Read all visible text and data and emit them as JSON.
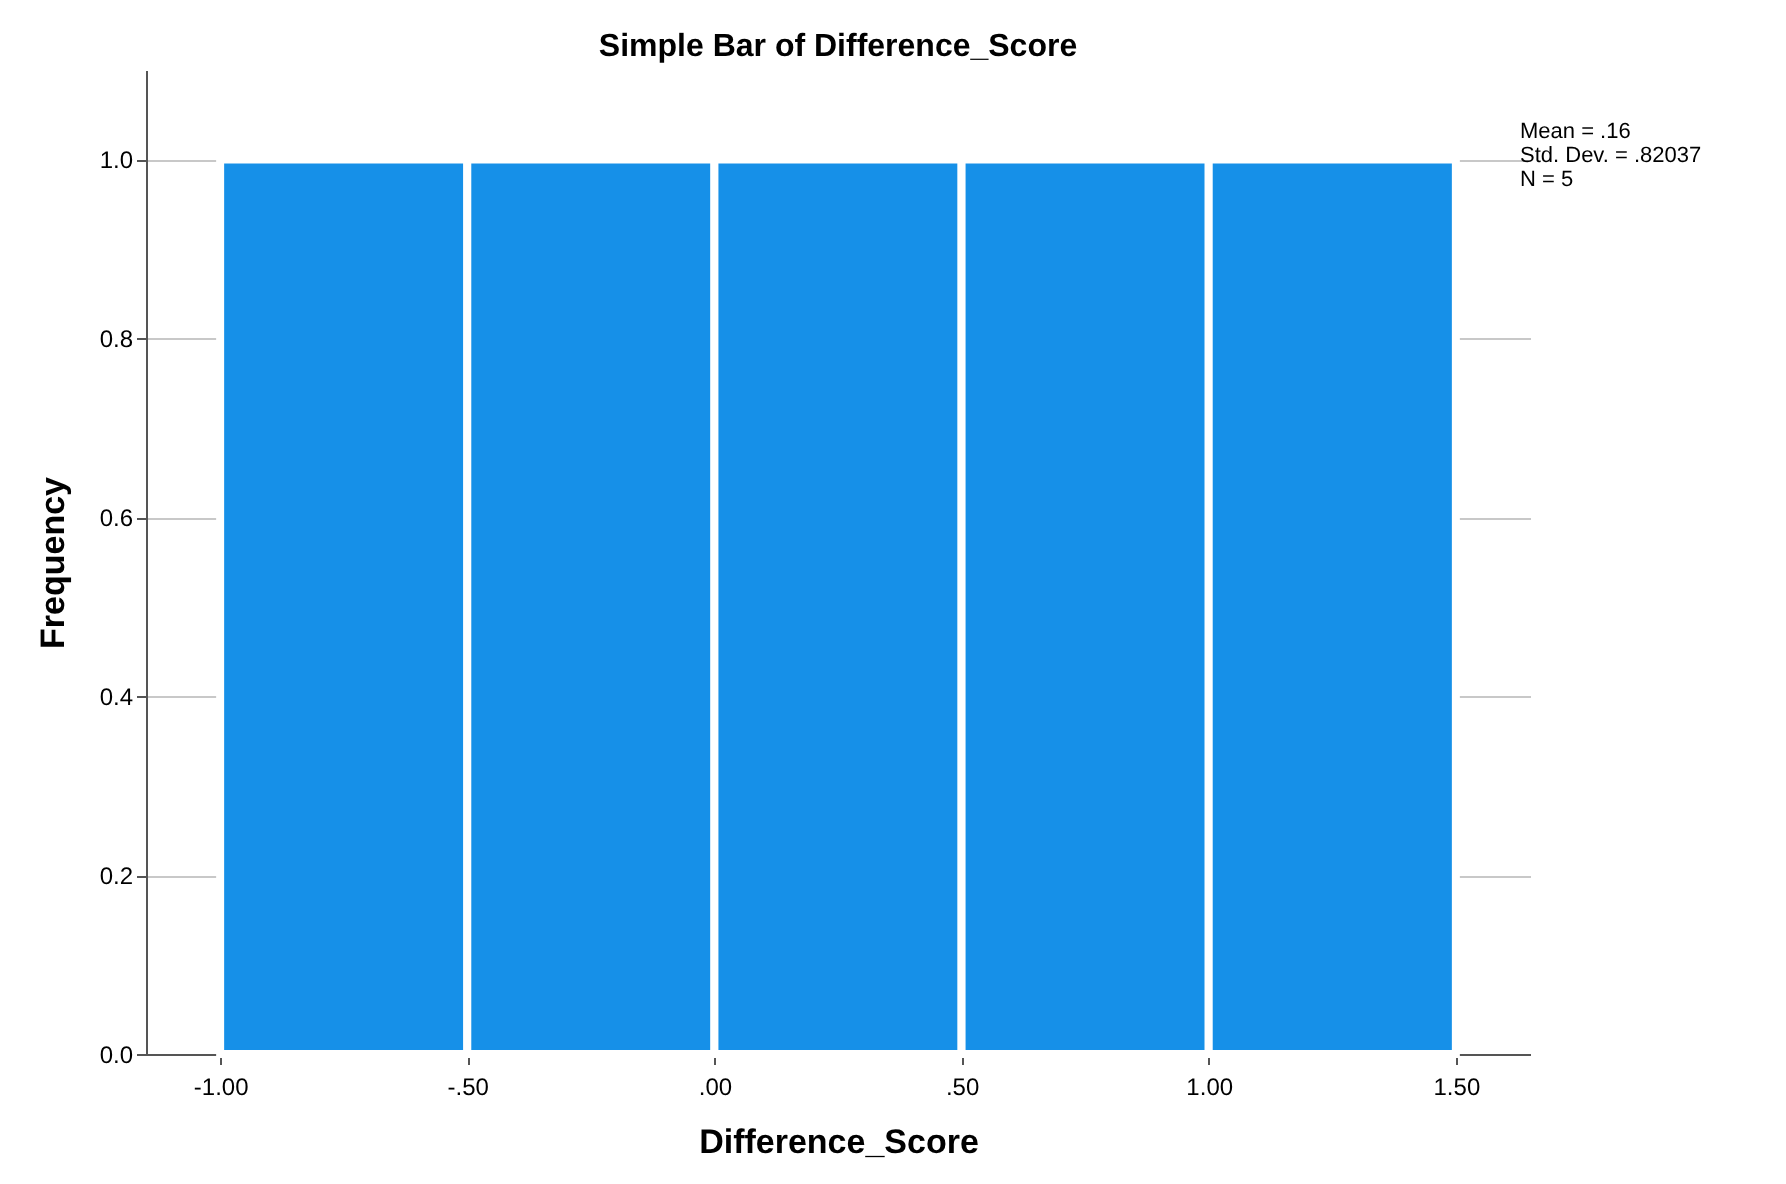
{
  "chart_data": {
    "type": "histogram",
    "title": "Simple Bar of Difference_Score",
    "xlabel": "Difference_Score",
    "ylabel": "Frequency",
    "bins": [
      -1,
      -0.5,
      0,
      0.5,
      1,
      1.5
    ],
    "values": [
      1,
      1,
      1,
      1,
      1
    ],
    "color": "#1690e8",
    "xlim": [
      -1.15,
      1.65
    ],
    "xticks": [
      {
        "value": -1,
        "label": "-1.00"
      },
      {
        "value": -0.5,
        "label": "-.50"
      },
      {
        "value": 0,
        "label": ".00"
      },
      {
        "value": 0.5,
        "label": ".50"
      },
      {
        "value": 1,
        "label": "1.00"
      },
      {
        "value": 1.5,
        "label": "1.50"
      }
    ],
    "ylim": [
      0,
      1.1
    ],
    "yticks": [
      {
        "value": 0,
        "label": "0.0"
      },
      {
        "value": 0.2,
        "label": "0.2"
      },
      {
        "value": 0.4,
        "label": "0.4"
      },
      {
        "value": 0.6,
        "label": "0.6"
      },
      {
        "value": 0.8,
        "label": "0.8"
      },
      {
        "value": 1,
        "label": "1.0"
      }
    ],
    "grid": "y",
    "annotations": [
      "Mean = .16",
      "Std. Dev. = .82037",
      "N = 5"
    ]
  }
}
